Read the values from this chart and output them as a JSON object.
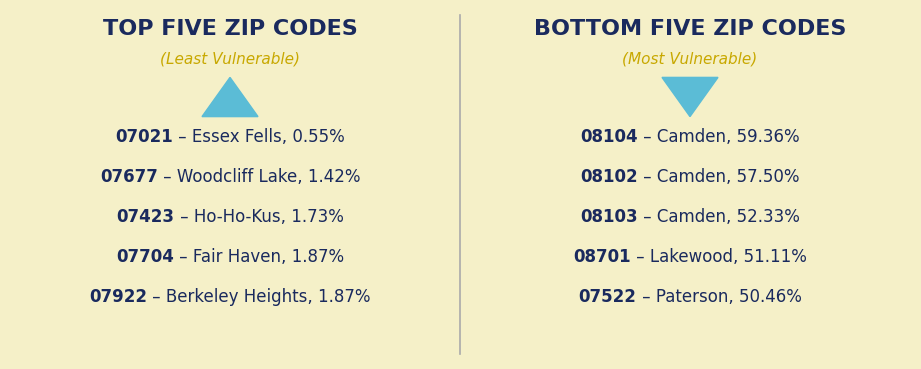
{
  "background_color": "#f5f0c8",
  "divider_color": "#aaaaaa",
  "left_title": "TOP FIVE ZIP CODES",
  "left_subtitle": "(Least Vulnerable)",
  "right_title": "BOTTOM FIVE ZIP CODES",
  "right_subtitle": "(Most Vulnerable)",
  "title_color": "#1a2a5e",
  "subtitle_color": "#c8a800",
  "arrow_color": "#5bbcd6",
  "text_color": "#1a2a5e",
  "left_items": [
    [
      "07021",
      " – Essex Fells, 0.55%"
    ],
    [
      "07677",
      " – Woodcliff Lake, 1.42%"
    ],
    [
      "07423",
      " – Ho-Ho-Kus, 1.73%"
    ],
    [
      "07704",
      " – Fair Haven, 1.87%"
    ],
    [
      "07922",
      " – Berkeley Heights, 1.87%"
    ]
  ],
  "right_items": [
    [
      "08104",
      " – Camden, 59.36%"
    ],
    [
      "08102",
      " – Camden, 57.50%"
    ],
    [
      "08103",
      " – Camden, 52.33%"
    ],
    [
      "08701",
      " – Lakewood, 51.11%"
    ],
    [
      "07522",
      " – Paterson, 50.46%"
    ]
  ],
  "item_fontsize": 12,
  "title_fontsize": 16,
  "subtitle_fontsize": 11
}
